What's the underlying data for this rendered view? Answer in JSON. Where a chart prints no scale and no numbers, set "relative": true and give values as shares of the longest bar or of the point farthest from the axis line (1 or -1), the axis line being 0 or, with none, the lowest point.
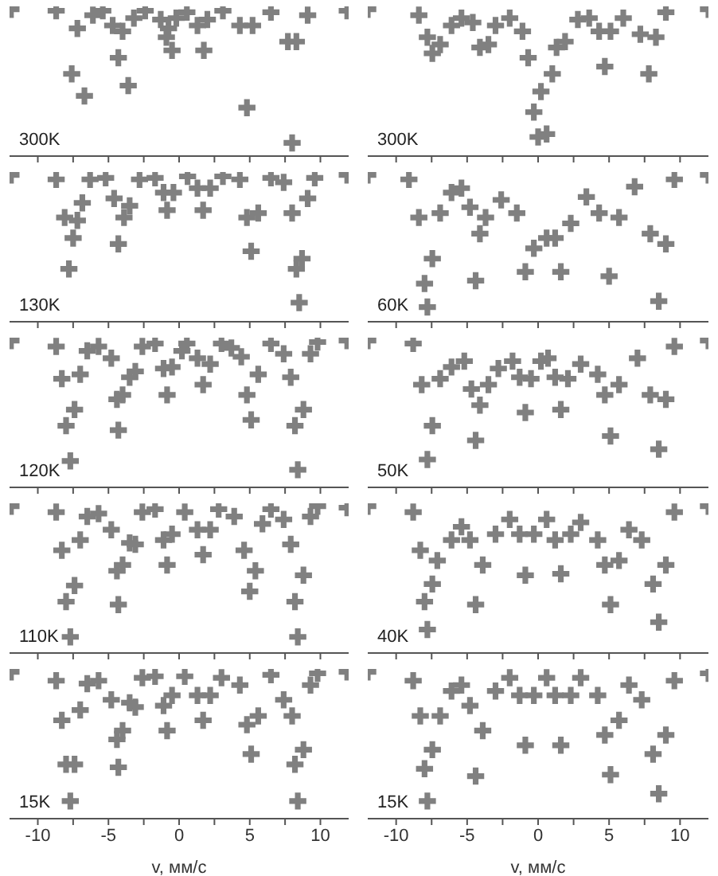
{
  "chart_data": [
    {
      "type": "scatter",
      "relative": true,
      "color": "#808080",
      "marker": "cross",
      "tick_labels": false,
      "xlim": [
        -12,
        12
      ],
      "xticks": [
        -10,
        {
          "value": -7.5,
          "label": null
        },
        -5,
        {
          "value": -2.5,
          "label": null
        },
        0,
        {
          "value": 2.5,
          "label": null
        },
        5,
        {
          "value": 7.5,
          "label": null
        },
        10
      ],
      "annotations": [
        "300K"
      ],
      "x": [
        -11.9,
        -8.7,
        -7.6,
        -7.2,
        -6.7,
        -6.1,
        -5.4,
        -4.7,
        -4.3,
        -4.0,
        -3.6,
        -3.2,
        -2.4,
        -1.3,
        -0.9,
        -0.75,
        -0.5,
        -0.2,
        0.55,
        1.3,
        1.75,
        2.0,
        3.1,
        4.3,
        4.8,
        5.2,
        6.5,
        7.7,
        8.0,
        8.3,
        9.1,
        11.9
      ],
      "values": [
        1.0,
        0.99,
        0.56,
        0.87,
        0.41,
        0.96,
        0.99,
        0.89,
        0.67,
        0.85,
        0.48,
        0.94,
        0.99,
        0.93,
        0.81,
        0.87,
        0.72,
        0.94,
        0.98,
        0.89,
        0.72,
        0.93,
        0.99,
        0.89,
        0.33,
        0.89,
        0.98,
        0.78,
        0.09,
        0.78,
        0.96,
        0.99
      ]
    },
    {
      "type": "scatter",
      "relative": true,
      "color": "#808080",
      "marker": "cross",
      "tick_labels": false,
      "xlim": [
        -12,
        12
      ],
      "xticks": [
        -10,
        {
          "value": -7.5,
          "label": null
        },
        -5,
        {
          "value": -2.5,
          "label": null
        },
        0,
        {
          "value": 2.5,
          "label": null
        },
        5,
        {
          "value": 7.5,
          "label": null
        },
        10
      ],
      "annotations": [
        "300K"
      ],
      "x": [
        -12,
        -8.4,
        -7.8,
        -7.45,
        -6.9,
        -6.1,
        -5.4,
        -4.6,
        -4.1,
        -3.5,
        -3.0,
        -2.0,
        -1.1,
        -0.7,
        -0.3,
        0,
        0.2,
        0.6,
        1.0,
        1.3,
        1.9,
        2.8,
        3.6,
        4.3,
        4.7,
        5.1,
        6.0,
        7.2,
        7.8,
        8.3,
        9.0,
        12
      ],
      "values": [
        1.0,
        0.96,
        0.81,
        0.7,
        0.76,
        0.89,
        0.94,
        0.91,
        0.74,
        0.76,
        0.89,
        0.94,
        0.85,
        0.67,
        0.3,
        0.13,
        0.44,
        0.15,
        0.56,
        0.74,
        0.78,
        0.93,
        0.94,
        0.85,
        0.61,
        0.85,
        0.94,
        0.83,
        0.56,
        0.81,
        0.98,
        1.0
      ]
    },
    {
      "type": "scatter",
      "relative": true,
      "color": "#808080",
      "marker": "cross",
      "tick_labels": false,
      "xlim": [
        -12,
        12
      ],
      "xticks": [
        -10,
        {
          "value": -7.5,
          "label": null
        },
        -5,
        {
          "value": -2.5,
          "label": null
        },
        0,
        {
          "value": 2.5,
          "label": null
        },
        5,
        {
          "value": 7.5,
          "label": null
        },
        10
      ],
      "annotations": [
        "130K"
      ],
      "x": [
        -11.9,
        -8.7,
        -8.1,
        -7.8,
        -7.5,
        -7.2,
        -6.85,
        -6.3,
        -5.2,
        -4.6,
        -4.3,
        -3.9,
        -3.5,
        -2.8,
        -1.7,
        -1.1,
        -0.85,
        -0.4,
        0.6,
        1.3,
        1.7,
        2.2,
        3.1,
        4.3,
        4.8,
        5.1,
        5.6,
        6.5,
        7.4,
        8.0,
        8.3,
        8.5,
        8.7,
        9.1,
        9.6,
        11.9
      ],
      "values": [
        1.0,
        0.97,
        0.71,
        0.36,
        0.57,
        0.69,
        0.81,
        0.97,
        0.98,
        0.84,
        0.53,
        0.71,
        0.79,
        0.97,
        0.98,
        0.88,
        0.76,
        0.88,
        0.99,
        0.91,
        0.76,
        0.91,
        0.99,
        0.97,
        0.71,
        0.48,
        0.74,
        0.98,
        0.95,
        0.74,
        0.36,
        0.13,
        0.43,
        0.84,
        0.98,
        1.0
      ]
    },
    {
      "type": "scatter",
      "relative": true,
      "color": "#808080",
      "marker": "cross",
      "tick_labels": false,
      "xlim": [
        -12,
        12
      ],
      "xticks": [
        -10,
        {
          "value": -7.5,
          "label": null
        },
        -5,
        {
          "value": -2.5,
          "label": null
        },
        0,
        {
          "value": 2.5,
          "label": null
        },
        5,
        {
          "value": 7.5,
          "label": null
        },
        10
      ],
      "annotations": [
        "60K"
      ],
      "x": [
        -12,
        -9.1,
        -8.4,
        -8.0,
        -7.8,
        -7.45,
        -6.9,
        -6.1,
        -5.4,
        -4.8,
        -4.4,
        -4.1,
        -3.7,
        -2.6,
        -1.5,
        -0.9,
        -0.3,
        0.6,
        1.2,
        1.6,
        2.3,
        3.4,
        4.3,
        5.0,
        5.7,
        6.8,
        7.9,
        8.5,
        9.0,
        9.6,
        12
      ],
      "values": [
        1.0,
        0.97,
        0.71,
        0.26,
        0.1,
        0.43,
        0.74,
        0.88,
        0.91,
        0.78,
        0.28,
        0.6,
        0.71,
        0.83,
        0.74,
        0.34,
        0.5,
        0.57,
        0.57,
        0.34,
        0.67,
        0.85,
        0.74,
        0.31,
        0.71,
        0.92,
        0.6,
        0.14,
        0.53,
        0.97,
        1.0
      ]
    },
    {
      "type": "scatter",
      "relative": true,
      "color": "#808080",
      "marker": "cross",
      "tick_labels": false,
      "xlim": [
        -12,
        12
      ],
      "xticks": [
        -10,
        {
          "value": -7.5,
          "label": null
        },
        -5,
        {
          "value": -2.5,
          "label": null
        },
        0,
        {
          "value": 2.5,
          "label": null
        },
        5,
        {
          "value": 7.5,
          "label": null
        },
        10
      ],
      "annotations": [
        "120K"
      ],
      "x": [
        -11.9,
        -8.7,
        -8.3,
        -8.0,
        -7.7,
        -7.4,
        -7.0,
        -6.5,
        -5.7,
        -4.8,
        -4.4,
        -4.3,
        -4.0,
        -3.5,
        -3.1,
        -2.6,
        -1.7,
        -1.1,
        -0.85,
        -0.5,
        0.2,
        0.55,
        1.3,
        1.7,
        2.2,
        3.0,
        3.7,
        4.4,
        4.8,
        5.1,
        5.6,
        6.5,
        7.4,
        7.9,
        8.2,
        8.4,
        8.8,
        9.3,
        9.8,
        11.9
      ],
      "values": [
        1.0,
        0.96,
        0.74,
        0.42,
        0.18,
        0.53,
        0.77,
        0.93,
        0.96,
        0.88,
        0.6,
        0.39,
        0.63,
        0.75,
        0.79,
        0.96,
        0.98,
        0.81,
        0.63,
        0.82,
        0.93,
        0.98,
        0.88,
        0.7,
        0.84,
        0.98,
        0.95,
        0.89,
        0.63,
        0.46,
        0.77,
        0.98,
        0.91,
        0.75,
        0.42,
        0.12,
        0.53,
        0.91,
        0.99,
        1.0
      ]
    },
    {
      "type": "scatter",
      "relative": true,
      "color": "#808080",
      "marker": "cross",
      "tick_labels": false,
      "xlim": [
        -12,
        12
      ],
      "xticks": [
        -10,
        {
          "value": -7.5,
          "label": null
        },
        -5,
        {
          "value": -2.5,
          "label": null
        },
        0,
        {
          "value": 2.5,
          "label": null
        },
        5,
        {
          "value": 7.5,
          "label": null
        },
        10
      ],
      "annotations": [
        "50K"
      ],
      "x": [
        -12,
        -8.8,
        -8.2,
        -7.8,
        -7.45,
        -6.9,
        -6.1,
        -5.2,
        -4.7,
        -4.4,
        -4.1,
        -3.5,
        -2.8,
        -1.8,
        -1.3,
        -0.9,
        -0.5,
        0.2,
        0.7,
        1.2,
        1.6,
        2.1,
        3.0,
        4.2,
        4.7,
        5.1,
        5.7,
        7.0,
        7.9,
        8.5,
        9.0,
        9.6,
        12
      ],
      "values": [
        1.0,
        0.98,
        0.7,
        0.19,
        0.42,
        0.74,
        0.82,
        0.86,
        0.67,
        0.32,
        0.56,
        0.7,
        0.81,
        0.86,
        0.75,
        0.51,
        0.74,
        0.86,
        0.88,
        0.75,
        0.53,
        0.74,
        0.84,
        0.77,
        0.63,
        0.35,
        0.7,
        0.88,
        0.63,
        0.26,
        0.6,
        0.96,
        1.0
      ]
    },
    {
      "type": "scatter",
      "relative": true,
      "color": "#808080",
      "marker": "cross",
      "tick_labels": false,
      "xlim": [
        -12,
        12
      ],
      "xticks": [
        -10,
        {
          "value": -7.5,
          "label": null
        },
        -5,
        {
          "value": -2.5,
          "label": null
        },
        0,
        {
          "value": 2.5,
          "label": null
        },
        5,
        {
          "value": 7.5,
          "label": null
        },
        10
      ],
      "annotations": [
        "110K"
      ],
      "x": [
        -11.9,
        -8.7,
        -8.3,
        -8.0,
        -7.7,
        -7.4,
        -7.0,
        -6.5,
        -5.7,
        -4.8,
        -4.4,
        -4.3,
        -4.0,
        -3.5,
        -3.1,
        -2.6,
        -1.7,
        -1.1,
        -0.85,
        -0.5,
        0.4,
        1.3,
        1.7,
        2.2,
        2.8,
        3.9,
        4.6,
        5.0,
        5.4,
        5.9,
        6.5,
        7.4,
        7.9,
        8.2,
        8.4,
        8.8,
        9.3,
        9.8,
        11.9
      ],
      "values": [
        1.0,
        0.96,
        0.7,
        0.35,
        0.11,
        0.46,
        0.77,
        0.93,
        0.95,
        0.84,
        0.56,
        0.33,
        0.6,
        0.75,
        0.74,
        0.96,
        0.98,
        0.77,
        0.6,
        0.81,
        0.96,
        0.84,
        0.67,
        0.84,
        0.98,
        0.93,
        0.7,
        0.42,
        0.56,
        0.88,
        0.98,
        0.91,
        0.74,
        0.35,
        0.11,
        0.53,
        0.93,
        1.0,
        0.99
      ]
    },
    {
      "type": "scatter",
      "relative": true,
      "color": "#808080",
      "marker": "cross",
      "tick_labels": false,
      "xlim": [
        -12,
        12
      ],
      "xticks": [
        -10,
        {
          "value": -7.5,
          "label": null
        },
        -5,
        {
          "value": -2.5,
          "label": null
        },
        0,
        {
          "value": 2.5,
          "label": null
        },
        5,
        {
          "value": 7.5,
          "label": null
        },
        10
      ],
      "annotations": [
        "40K"
      ],
      "x": [
        -12,
        -8.8,
        -8.3,
        -8.0,
        -7.8,
        -7.45,
        -7.1,
        -6.1,
        -5.4,
        -4.8,
        -4.4,
        -3.9,
        -3.0,
        -2.0,
        -1.3,
        -0.9,
        -0.3,
        0.6,
        1.2,
        1.6,
        2.3,
        3.0,
        4.2,
        4.7,
        5.1,
        5.7,
        6.4,
        7.3,
        8.1,
        8.5,
        9.0,
        9.6,
        12
      ],
      "values": [
        1.0,
        0.96,
        0.7,
        0.35,
        0.16,
        0.47,
        0.63,
        0.77,
        0.86,
        0.77,
        0.33,
        0.6,
        0.81,
        0.91,
        0.81,
        0.53,
        0.81,
        0.91,
        0.77,
        0.54,
        0.81,
        0.89,
        0.77,
        0.6,
        0.33,
        0.63,
        0.84,
        0.77,
        0.47,
        0.21,
        0.6,
        0.96,
        1.0
      ]
    },
    {
      "type": "scatter",
      "relative": true,
      "color": "#808080",
      "marker": "cross",
      "tick_labels": "x",
      "xlim": [
        -12,
        12
      ],
      "xticks": [
        -10,
        {
          "value": -7.5,
          "label": null
        },
        -5,
        {
          "value": -2.5,
          "label": null
        },
        0,
        {
          "value": 2.5,
          "label": null
        },
        5,
        {
          "value": 7.5,
          "label": null
        },
        10
      ],
      "xlabel": "v, мм/с",
      "annotations": [
        "15K"
      ],
      "x": [
        -11.9,
        -8.7,
        -8.3,
        -8.0,
        -7.7,
        -7.4,
        -7.0,
        -6.5,
        -5.7,
        -4.8,
        -4.4,
        -4.3,
        -4.0,
        -3.5,
        -3.1,
        -2.6,
        -1.7,
        -1.1,
        -0.85,
        -0.5,
        0.4,
        1.3,
        1.7,
        2.2,
        3.0,
        4.3,
        4.8,
        5.1,
        5.6,
        6.5,
        7.4,
        8.0,
        8.2,
        8.4,
        8.8,
        9.3,
        9.8,
        11.9
      ],
      "values": [
        1.0,
        0.94,
        0.67,
        0.37,
        0.12,
        0.37,
        0.74,
        0.92,
        0.94,
        0.81,
        0.54,
        0.35,
        0.6,
        0.79,
        0.76,
        0.96,
        0.97,
        0.77,
        0.6,
        0.84,
        0.97,
        0.84,
        0.67,
        0.84,
        0.96,
        0.91,
        0.64,
        0.44,
        0.7,
        0.98,
        0.81,
        0.7,
        0.37,
        0.12,
        0.47,
        0.91,
        0.99,
        1.0
      ]
    },
    {
      "type": "scatter",
      "relative": true,
      "color": "#808080",
      "marker": "cross",
      "tick_labels": "x",
      "xlim": [
        -12,
        12
      ],
      "xticks": [
        -10,
        {
          "value": -7.5,
          "label": null
        },
        -5,
        {
          "value": -2.5,
          "label": null
        },
        0,
        {
          "value": 2.5,
          "label": null
        },
        5,
        {
          "value": 7.5,
          "label": null
        },
        10
      ],
      "xlabel": "v, мм/с",
      "annotations": [
        "15K"
      ],
      "x": [
        -12,
        -8.8,
        -8.3,
        -8.0,
        -7.8,
        -7.45,
        -6.9,
        -6.1,
        -5.4,
        -4.8,
        -4.4,
        -3.9,
        -3.0,
        -2.0,
        -1.3,
        -0.9,
        -0.3,
        0.6,
        1.2,
        1.6,
        2.3,
        3.0,
        4.2,
        4.7,
        5.1,
        5.7,
        6.4,
        7.3,
        8.1,
        8.5,
        9.0,
        9.6,
        12
      ],
      "values": [
        1.0,
        0.94,
        0.7,
        0.34,
        0.12,
        0.47,
        0.7,
        0.87,
        0.91,
        0.77,
        0.29,
        0.6,
        0.87,
        0.96,
        0.84,
        0.5,
        0.84,
        0.96,
        0.84,
        0.5,
        0.84,
        0.96,
        0.84,
        0.57,
        0.3,
        0.67,
        0.91,
        0.81,
        0.44,
        0.17,
        0.57,
        0.94,
        0.99
      ]
    }
  ]
}
